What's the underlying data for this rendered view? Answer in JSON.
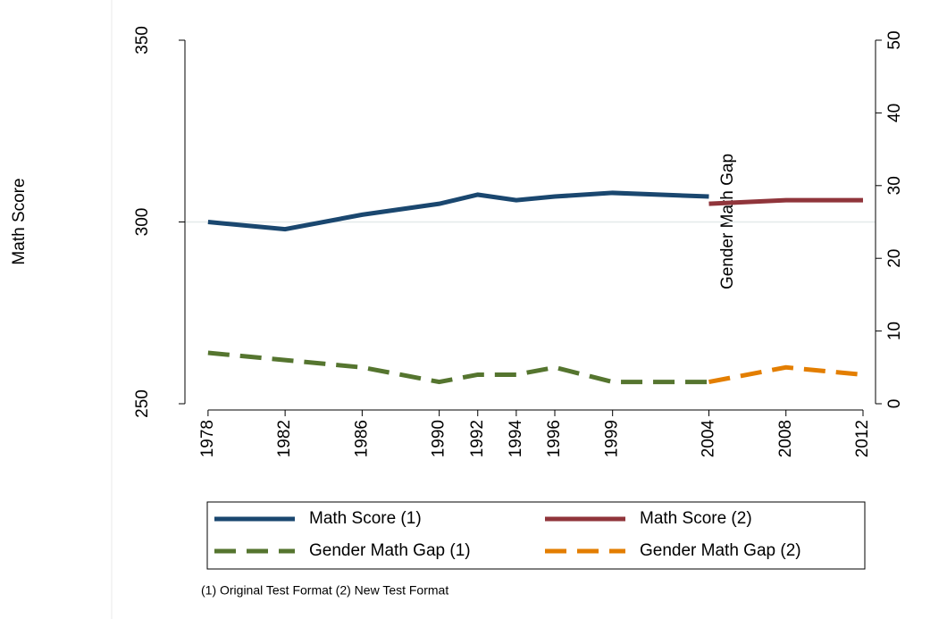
{
  "chart_data": {
    "type": "line",
    "ylabel": "Math Score",
    "y2label": "Gender Math Gap",
    "note": "(1) Original Test Format (2) New Test Format",
    "xlim": [
      1976.8,
      2012.65
    ],
    "xticks": [
      1978,
      1982,
      1986,
      1990,
      1992,
      1994,
      1996,
      1999,
      2004,
      2008,
      2012
    ],
    "ylim": [
      250,
      350
    ],
    "yticks": [
      250,
      300,
      350
    ],
    "y2lim": [
      0,
      50
    ],
    "y2ticks": [
      0,
      10,
      20,
      30,
      40,
      50
    ],
    "yline": 300,
    "series": [
      {
        "name": "Math Score (1)",
        "color": "#1a476f",
        "dash": false,
        "axis": "y",
        "x": [
          1978,
          1982,
          1986,
          1990,
          1992,
          1994,
          1996,
          1999,
          2004
        ],
        "values": [
          300,
          298,
          302,
          305,
          307.5,
          306,
          307,
          308,
          307
        ]
      },
      {
        "name": "Math Score (2)",
        "color": "#90353b",
        "dash": false,
        "axis": "y",
        "x": [
          2004,
          2008,
          2012
        ],
        "values": [
          305,
          306,
          306
        ]
      },
      {
        "name": "Gender Math Gap (1)",
        "color": "#55752f",
        "dash": true,
        "axis": "y2",
        "x": [
          1978,
          1982,
          1986,
          1990,
          1992,
          1994,
          1996,
          1999,
          2004
        ],
        "values": [
          7,
          6,
          5,
          3,
          4,
          4,
          5,
          3,
          3
        ]
      },
      {
        "name": "Gender Math Gap (2)",
        "color": "#e37e00",
        "dash": true,
        "axis": "y2",
        "x": [
          2004,
          2008,
          2012
        ],
        "values": [
          3,
          5,
          4
        ]
      }
    ]
  }
}
